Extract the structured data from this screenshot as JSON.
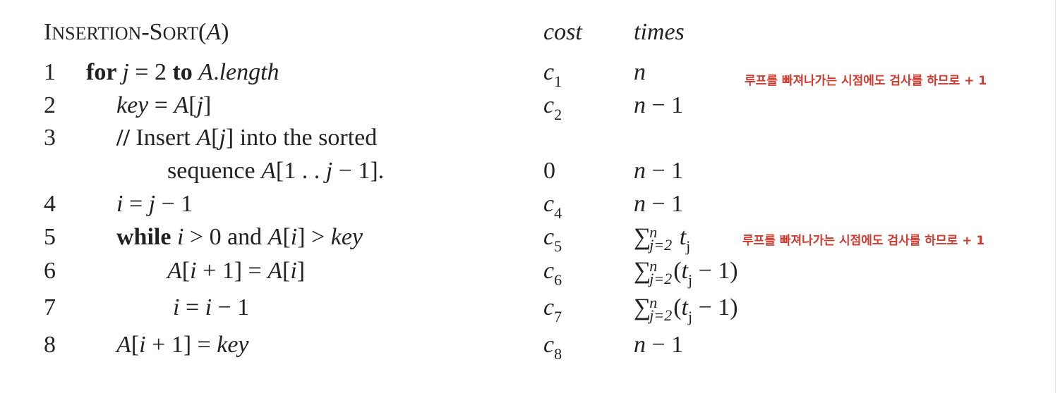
{
  "title": [
    {
      "t": "I",
      "s": "r"
    },
    {
      "t": "NSERTION",
      "s": "sc"
    },
    {
      "t": "-S",
      "s": "r"
    },
    {
      "t": "ORT",
      "s": "sc"
    },
    {
      "t": "(",
      "s": "r"
    },
    {
      "t": "A",
      "s": "i"
    },
    {
      "t": ")",
      "s": "r"
    }
  ],
  "headers": {
    "cost": "cost",
    "times": "times"
  },
  "lines": [
    {
      "num": "1",
      "code": [
        {
          "t": "for ",
          "s": "b"
        },
        {
          "t": "j",
          "s": "i"
        },
        {
          "t": " = 2 ",
          "s": "r"
        },
        {
          "t": "to ",
          "s": "b"
        },
        {
          "t": "A",
          "s": "i"
        },
        {
          "t": ".",
          "s": "r"
        },
        {
          "t": "length",
          "s": "i"
        }
      ],
      "cost": [
        {
          "t": "c",
          "s": "i"
        },
        {
          "t": "1",
          "s": "sub"
        }
      ],
      "times": [
        {
          "t": "n",
          "s": "i"
        }
      ],
      "note": "루프를 빠져나가는 시점에도 검사를 하므로 + 1"
    },
    {
      "num": "2",
      "code": [
        {
          "t": "key",
          "s": "i"
        },
        {
          "t": " = ",
          "s": "r"
        },
        {
          "t": "A",
          "s": "i"
        },
        {
          "t": "[",
          "s": "r"
        },
        {
          "t": "j",
          "s": "i"
        },
        {
          "t": "]",
          "s": "r"
        }
      ],
      "cost": [
        {
          "t": "c",
          "s": "i"
        },
        {
          "t": "2",
          "s": "sub"
        }
      ],
      "times": [
        {
          "t": "n",
          "s": "i"
        },
        {
          "t": " − 1",
          "s": "r"
        }
      ]
    },
    {
      "num": "3",
      "code": [
        {
          "t": "// ",
          "s": "b"
        },
        {
          "t": "Insert ",
          "s": "r"
        },
        {
          "t": "A",
          "s": "i"
        },
        {
          "t": "[",
          "s": "r"
        },
        {
          "t": "j",
          "s": "i"
        },
        {
          "t": "] into the sorted",
          "s": "r"
        }
      ],
      "cost": [],
      "times": []
    },
    {
      "num": "",
      "code": [
        {
          "t": "sequence ",
          "s": "r"
        },
        {
          "t": "A",
          "s": "i"
        },
        {
          "t": "[1 . . ",
          "s": "r"
        },
        {
          "t": "j",
          "s": "i"
        },
        {
          "t": " − 1].",
          "s": "r"
        }
      ],
      "cost": [
        {
          "t": "0",
          "s": "r"
        }
      ],
      "times": [
        {
          "t": "n",
          "s": "i"
        },
        {
          "t": " − 1",
          "s": "r"
        }
      ]
    },
    {
      "num": "4",
      "code": [
        {
          "t": "i",
          "s": "i"
        },
        {
          "t": " = ",
          "s": "r"
        },
        {
          "t": "j",
          "s": "i"
        },
        {
          "t": " − 1",
          "s": "r"
        }
      ],
      "cost": [
        {
          "t": "c",
          "s": "i"
        },
        {
          "t": "4",
          "s": "sub"
        }
      ],
      "times": [
        {
          "t": "n",
          "s": "i"
        },
        {
          "t": " − 1",
          "s": "r"
        }
      ]
    },
    {
      "num": "5",
      "code": [
        {
          "t": "while ",
          "s": "b"
        },
        {
          "t": "i",
          "s": "i"
        },
        {
          "t": " > 0 and ",
          "s": "r"
        },
        {
          "t": "A",
          "s": "i"
        },
        {
          "t": "[",
          "s": "r"
        },
        {
          "t": "i",
          "s": "i"
        },
        {
          "t": "] > ",
          "s": "r"
        },
        {
          "t": "key",
          "s": "i"
        }
      ],
      "cost": [
        {
          "t": "c",
          "s": "i"
        },
        {
          "t": "5",
          "s": "sub"
        }
      ],
      "times": [
        {
          "t": "∑",
          "s": "sum",
          "sup": "n",
          "sub": "j=2"
        },
        {
          "t": " t",
          "s": "i"
        },
        {
          "t": "j",
          "s": "sub"
        }
      ],
      "note": "루프를 빠져나가는 시점에도 검사를 하므로 + 1"
    },
    {
      "num": "6",
      "code": [
        {
          "t": "A",
          "s": "i"
        },
        {
          "t": "[",
          "s": "r"
        },
        {
          "t": "i",
          "s": "i"
        },
        {
          "t": " + 1] = ",
          "s": "r"
        },
        {
          "t": "A",
          "s": "i"
        },
        {
          "t": "[",
          "s": "r"
        },
        {
          "t": "i",
          "s": "i"
        },
        {
          "t": "]",
          "s": "r"
        }
      ],
      "cost": [
        {
          "t": "c",
          "s": "i"
        },
        {
          "t": "6",
          "s": "sub"
        }
      ],
      "times": [
        {
          "t": "∑",
          "s": "sum",
          "sup": "n",
          "sub": "j=2"
        },
        {
          "t": "(",
          "s": "r"
        },
        {
          "t": "t",
          "s": "i"
        },
        {
          "t": "j",
          "s": "sub"
        },
        {
          "t": " − 1)",
          "s": "r"
        }
      ]
    },
    {
      "num": "7",
      "code": [
        {
          "t": "i",
          "s": "i"
        },
        {
          "t": " = ",
          "s": "r"
        },
        {
          "t": "i",
          "s": "i"
        },
        {
          "t": " − 1",
          "s": "r"
        }
      ],
      "cost": [
        {
          "t": "c",
          "s": "i"
        },
        {
          "t": "7",
          "s": "sub"
        }
      ],
      "times": [
        {
          "t": "∑",
          "s": "sum",
          "sup": "n",
          "sub": "j=2"
        },
        {
          "t": "(",
          "s": "r"
        },
        {
          "t": "t",
          "s": "i"
        },
        {
          "t": "j",
          "s": "sub"
        },
        {
          "t": " − 1)",
          "s": "r"
        }
      ]
    },
    {
      "num": "8",
      "code": [
        {
          "t": "A",
          "s": "i"
        },
        {
          "t": "[",
          "s": "r"
        },
        {
          "t": "i",
          "s": "i"
        },
        {
          "t": " + 1] = ",
          "s": "r"
        },
        {
          "t": "key",
          "s": "i"
        }
      ],
      "cost": [
        {
          "t": "c",
          "s": "i"
        },
        {
          "t": "8",
          "s": "sub"
        }
      ],
      "times": [
        {
          "t": "n",
          "s": "i"
        },
        {
          "t": " − 1",
          "s": "r"
        }
      ]
    }
  ],
  "colors": {
    "note": "#d03a2f",
    "text": "#222222"
  }
}
